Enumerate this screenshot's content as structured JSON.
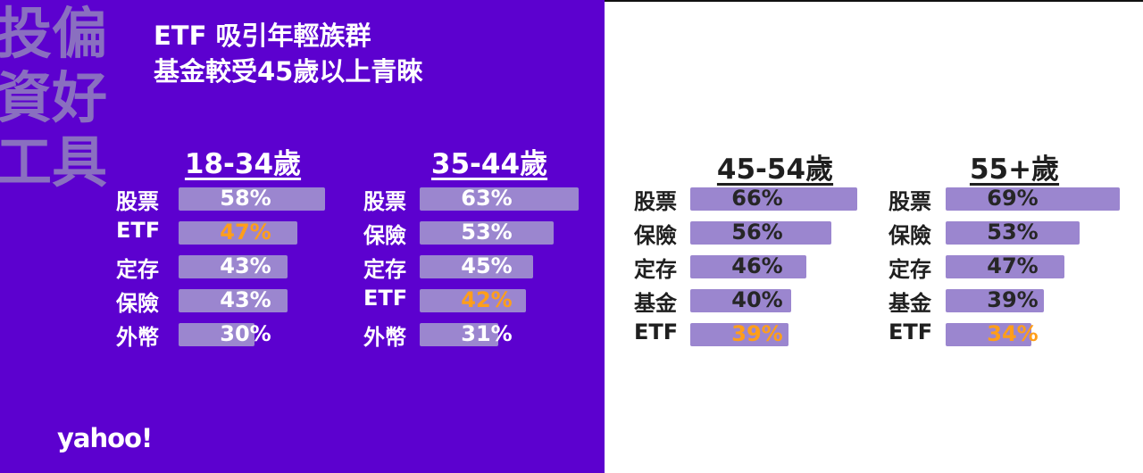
{
  "watermark": "投偏資好工具",
  "title": {
    "line1": "ETF 吸引年輕族群",
    "line2": "基金較受45歲以上青睞"
  },
  "logo": "yahoo!",
  "colors": {
    "panel": "#5c01cf",
    "bar": "#9b86cf",
    "highlight": "#ff9e1a"
  },
  "chart_data": {
    "type": "bar",
    "groups": [
      {
        "name": "18-34歲",
        "items": [
          {
            "label": "股票",
            "value": 58,
            "display": "58%"
          },
          {
            "label": "ETF",
            "value": 47,
            "display": "47%",
            "highlight": true
          },
          {
            "label": "定存",
            "value": 43,
            "display": "43%"
          },
          {
            "label": "保險",
            "value": 43,
            "display": "43%"
          },
          {
            "label": "外幣",
            "value": 30,
            "display": "30%"
          }
        ]
      },
      {
        "name": "35-44歲",
        "items": [
          {
            "label": "股票",
            "value": 63,
            "display": "63%"
          },
          {
            "label": "保險",
            "value": 53,
            "display": "53%"
          },
          {
            "label": "定存",
            "value": 45,
            "display": "45%"
          },
          {
            "label": "ETF",
            "value": 42,
            "display": "42%",
            "highlight": true
          },
          {
            "label": "外幣",
            "value": 31,
            "display": "31%"
          }
        ]
      },
      {
        "name": "45-54歲",
        "items": [
          {
            "label": "股票",
            "value": 66,
            "display": "66%"
          },
          {
            "label": "保險",
            "value": 56,
            "display": "56%"
          },
          {
            "label": "定存",
            "value": 46,
            "display": "46%"
          },
          {
            "label": "基金",
            "value": 40,
            "display": "40%"
          },
          {
            "label": "ETF",
            "value": 39,
            "display": "39%",
            "highlight": true
          }
        ]
      },
      {
        "name": "55+歲",
        "items": [
          {
            "label": "股票",
            "value": 69,
            "display": "69%"
          },
          {
            "label": "保險",
            "value": 53,
            "display": "53%"
          },
          {
            "label": "定存",
            "value": 47,
            "display": "47%"
          },
          {
            "label": "基金",
            "value": 39,
            "display": "39%"
          },
          {
            "label": "ETF",
            "value": 34,
            "display": "34%",
            "highlight": true
          }
        ]
      }
    ]
  }
}
